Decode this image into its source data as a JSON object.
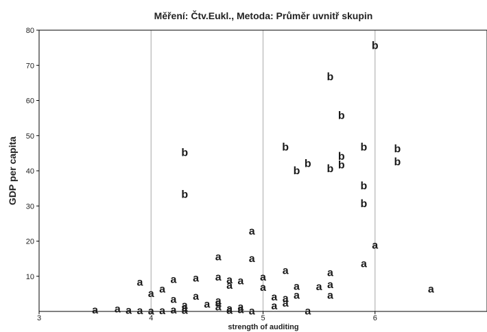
{
  "chart_data": {
    "type": "scatter",
    "title": "Měření: Čtv.Eukl., Metoda: Průměr uvnitř skupin",
    "xlabel": "strength of auditing",
    "ylabel": "GDP per capita",
    "xlim": [
      3,
      7
    ],
    "ylim": [
      0,
      80
    ],
    "xticks": [
      3,
      4,
      5,
      6
    ],
    "yticks": [
      10,
      20,
      30,
      40,
      50,
      60,
      70,
      80
    ],
    "grid": {
      "x": true,
      "y": false
    },
    "series": [
      {
        "name": "a",
        "points": [
          [
            3.5,
            0.6
          ],
          [
            3.7,
            0.9
          ],
          [
            3.8,
            0.5
          ],
          [
            3.9,
            0.4
          ],
          [
            4.0,
            0.3
          ],
          [
            4.1,
            0.4
          ],
          [
            4.2,
            0.6
          ],
          [
            4.3,
            0.5
          ],
          [
            4.3,
            1.2
          ],
          [
            4.3,
            2.0
          ],
          [
            4.5,
            2.2
          ],
          [
            4.6,
            1.5
          ],
          [
            4.6,
            2.5
          ],
          [
            4.6,
            3.2
          ],
          [
            4.7,
            0.5
          ],
          [
            4.7,
            1.0
          ],
          [
            4.8,
            0.7
          ],
          [
            4.8,
            1.5
          ],
          [
            4.9,
            0.3
          ],
          [
            3.9,
            8.5
          ],
          [
            4.0,
            5.3
          ],
          [
            4.1,
            6.5
          ],
          [
            4.2,
            3.6
          ],
          [
            4.2,
            9.3
          ],
          [
            4.4,
            4.5
          ],
          [
            4.4,
            9.7
          ],
          [
            4.6,
            10.0
          ],
          [
            4.7,
            7.6
          ],
          [
            4.7,
            9.2
          ],
          [
            4.8,
            8.9
          ],
          [
            4.6,
            15.7
          ],
          [
            4.9,
            15.2
          ],
          [
            4.9,
            23.0
          ],
          [
            5.0,
            10.0
          ],
          [
            5.0,
            7.0
          ],
          [
            5.1,
            1.8
          ],
          [
            5.1,
            4.3
          ],
          [
            5.2,
            2.5
          ],
          [
            5.2,
            3.9
          ],
          [
            5.2,
            11.8
          ],
          [
            5.3,
            4.8
          ],
          [
            5.3,
            7.3
          ],
          [
            5.4,
            0.3
          ],
          [
            5.5,
            7.2
          ],
          [
            5.6,
            4.8
          ],
          [
            5.6,
            7.8
          ],
          [
            5.6,
            11.2
          ],
          [
            5.9,
            13.8
          ],
          [
            6.0,
            19.0
          ],
          [
            6.5,
            6.5
          ]
        ]
      },
      {
        "name": "b",
        "points": [
          [
            4.3,
            45.4
          ],
          [
            4.3,
            33.5
          ],
          [
            5.2,
            46.9
          ],
          [
            5.3,
            40.2
          ],
          [
            5.4,
            42.2
          ],
          [
            5.6,
            40.8
          ],
          [
            5.6,
            66.9
          ],
          [
            5.7,
            55.9
          ],
          [
            5.7,
            44.3
          ],
          [
            5.7,
            41.9
          ],
          [
            5.9,
            46.9
          ],
          [
            5.9,
            35.9
          ],
          [
            5.9,
            30.8
          ],
          [
            6.0,
            75.8
          ],
          [
            6.2,
            46.4
          ],
          [
            6.2,
            42.7
          ]
        ]
      }
    ]
  }
}
